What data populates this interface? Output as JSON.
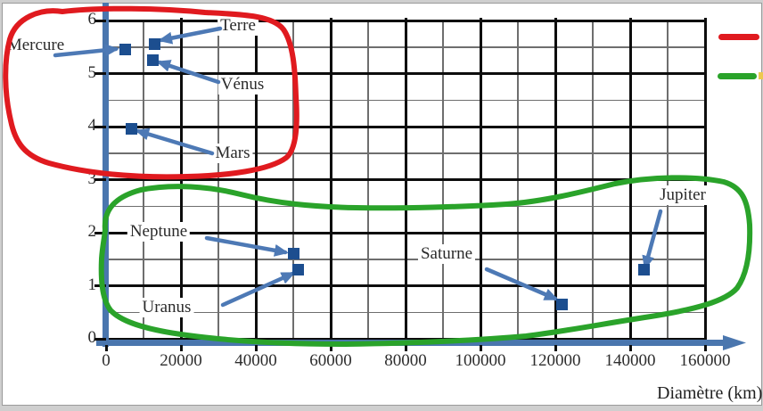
{
  "window": {
    "description_label": ""
  },
  "chart_data": {
    "type": "scatter",
    "title": "",
    "xlabel": "Diamètre (km)",
    "ylabel": "",
    "xlim": [
      0,
      160000
    ],
    "ylim": [
      0,
      6
    ],
    "x_ticks": [
      0,
      20000,
      40000,
      60000,
      80000,
      100000,
      120000,
      140000,
      160000
    ],
    "y_ticks": [
      0,
      1,
      2,
      3,
      4,
      5,
      6
    ],
    "x_minor_step": 10000,
    "y_minor_step": 0.5,
    "grid": true,
    "legend_position": "top-right",
    "marker": {
      "shape": "square",
      "color": "#1c4e8f",
      "size": 13
    },
    "points": [
      {
        "name": "Mercure",
        "x": 5000,
        "y": 5.45
      },
      {
        "name": "Terre",
        "x": 12900,
        "y": 5.55
      },
      {
        "name": "Vénus",
        "x": 12400,
        "y": 5.25
      },
      {
        "name": "Mars",
        "x": 6700,
        "y": 3.95
      },
      {
        "name": "Neptune",
        "x": 50000,
        "y": 1.6
      },
      {
        "name": "Uranus",
        "x": 51400,
        "y": 1.3
      },
      {
        "name": "Saturne",
        "x": 121700,
        "y": 0.65
      },
      {
        "name": "Jupiter",
        "x": 143800,
        "y": 1.3
      }
    ],
    "annotations": [
      {
        "name": "terrestrial-planets-outline",
        "shape": "freehand-loop",
        "color": "#e01a1f",
        "encircles": [
          "Mercure",
          "Terre",
          "Vénus",
          "Mars"
        ]
      },
      {
        "name": "giant-planets-outline",
        "shape": "freehand-loop",
        "color": "#2aa32a",
        "encircles": [
          "Neptune",
          "Uranus",
          "Saturne",
          "Jupiter"
        ]
      }
    ],
    "legend": [
      {
        "name": "red-series-key",
        "color": "#e01a1f",
        "label": ""
      },
      {
        "name": "green-series-key",
        "color": "#2aa32a",
        "label": ""
      }
    ],
    "colors": {
      "axis": "#4a76ae",
      "leader_line": "#4d79b5",
      "marker": "#1c4e8f",
      "grid_major": "#0d0d0d",
      "grid_minor": "#6e6e6e",
      "text": "#2a2a2a"
    }
  }
}
